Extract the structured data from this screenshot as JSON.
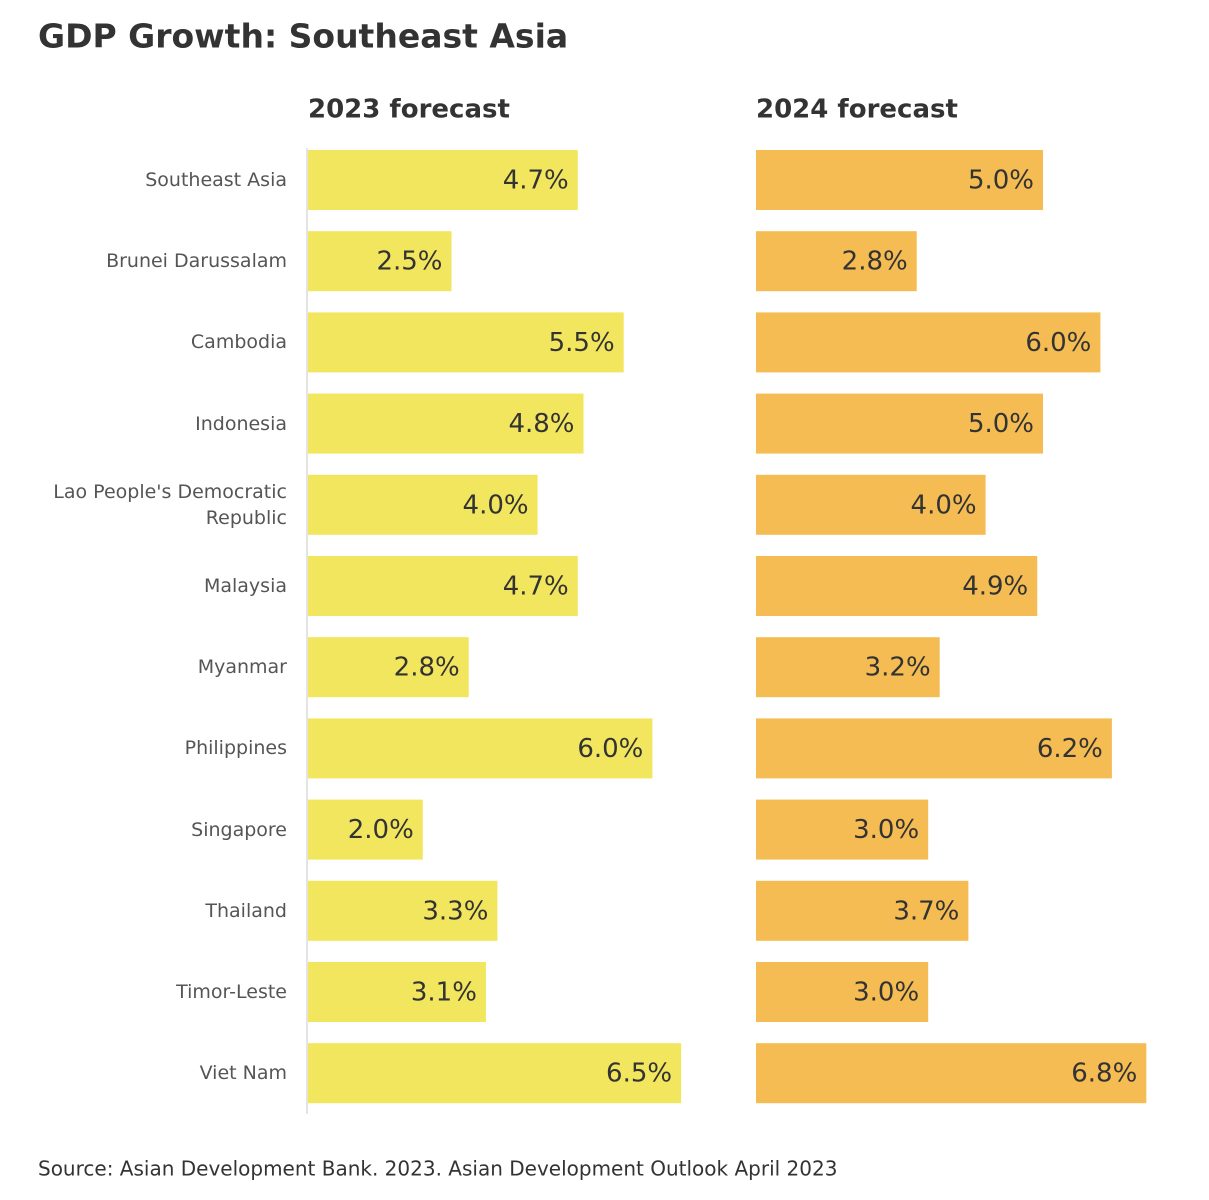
{
  "title": "GDP Growth: Southeast Asia",
  "source": "Source: Asian Development Bank. 2023. Asian Development Outlook April 2023",
  "chart_data": {
    "type": "bar",
    "orientation": "horizontal",
    "categories": [
      "Southeast Asia",
      "Brunei Darussalam",
      "Cambodia",
      "Indonesia",
      "Lao People's Democratic Republic",
      "Malaysia",
      "Myanmar",
      "Philippines",
      "Singapore",
      "Thailand",
      "Timor-Leste",
      "Viet Nam"
    ],
    "xlim": [
      0,
      7
    ],
    "series": [
      {
        "name": "2023 forecast",
        "color": "#f2e65e",
        "values": [
          4.7,
          2.5,
          5.5,
          4.8,
          4.0,
          4.7,
          2.8,
          6.0,
          2.0,
          3.3,
          3.1,
          6.5
        ],
        "value_labels": [
          "4.7%",
          "2.5%",
          "5.5%",
          "4.8%",
          "4.0%",
          "4.7%",
          "2.8%",
          "6.0%",
          "2.0%",
          "3.3%",
          "3.1%",
          "6.5%"
        ]
      },
      {
        "name": "2024 forecast",
        "color": "#f4bc52",
        "values": [
          5.0,
          2.8,
          6.0,
          5.0,
          4.0,
          4.9,
          3.2,
          6.2,
          3.0,
          3.7,
          3.0,
          6.8
        ],
        "value_labels": [
          "5.0%",
          "2.8%",
          "6.0%",
          "5.0%",
          "4.0%",
          "4.9%",
          "3.2%",
          "6.2%",
          "3.0%",
          "3.7%",
          "3.0%",
          "6.8%"
        ]
      }
    ]
  }
}
